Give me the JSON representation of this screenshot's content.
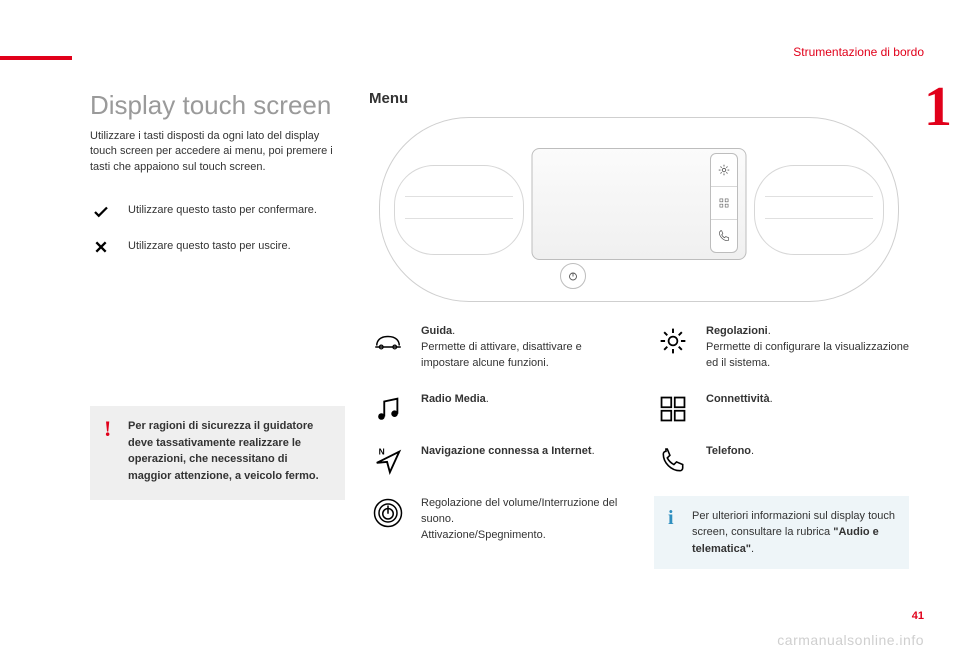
{
  "header": {
    "chapter": "Strumentazione di bordo",
    "page_indicator": "1",
    "page_number": "41"
  },
  "watermark": "carmanualsonline.info",
  "left": {
    "title": "Display touch screen",
    "intro": "Utilizzare i tasti disposti da ogni lato del display touch screen per accedere ai menu, poi premere i tasti che appaiono sul touch screen.",
    "confirm": "Utilizzare questo tasto per confermare.",
    "exit": "Utilizzare questo tasto per uscire.",
    "alert": "Per ragioni di sicurezza il guidatore deve tassativamente realizzare le operazioni, che necessitano di maggior attenzione, a veicolo fermo."
  },
  "menu": {
    "heading": "Menu"
  },
  "features_left": [
    {
      "title": "Guida",
      "desc": ".\nPermette di attivare, disattivare e impostare alcune funzioni.",
      "icon": "car"
    },
    {
      "title": "Radio Media",
      "desc": ".",
      "icon": "music"
    },
    {
      "title": "Navigazione connessa a Internet",
      "desc": ".",
      "icon": "nav"
    },
    {
      "title": "",
      "desc": "Regolazione del volume/Interruzione del suono.\nAttivazione/Spegnimento.",
      "icon": "power"
    }
  ],
  "features_right": [
    {
      "title": "Regolazioni",
      "desc": ".\nPermette di configurare la visualizzazione ed il sistema.",
      "icon": "gear"
    },
    {
      "title": "Connettività",
      "desc": ".",
      "icon": "apps"
    },
    {
      "title": "Telefono",
      "desc": ".",
      "icon": "phone"
    }
  ],
  "info": {
    "pre": "Per ulteriori informazioni sul display touch screen, consultare la rubrica ",
    "bold": "\"Audio e telematica\"",
    "post": "."
  }
}
